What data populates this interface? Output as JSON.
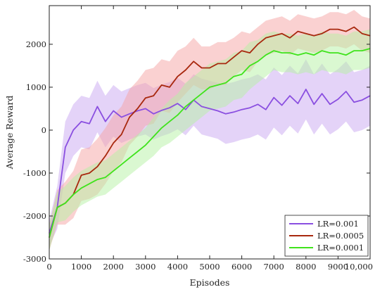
{
  "chart_data": {
    "type": "line",
    "xlabel": "Episodes",
    "ylabel": "Average Reward",
    "xlim": [
      0,
      10000
    ],
    "ylim": [
      -3000,
      2900
    ],
    "xticks": [
      0,
      1000,
      2000,
      3000,
      4000,
      5000,
      6000,
      7000,
      8000,
      9000,
      10000
    ],
    "xtick_labels": [
      "0",
      "1000",
      "2000",
      "3000",
      "4000",
      "5000",
      "6000",
      "7000",
      "8000",
      "9000",
      "10,000"
    ],
    "yticks": [
      -3000,
      -2000,
      -1000,
      0,
      1000,
      2000
    ],
    "ytick_labels": [
      "-3000",
      "-2000",
      "-1000",
      "0",
      "1000",
      "2000"
    ],
    "grid": false,
    "legend_position": "bottom-right",
    "x": [
      0,
      250,
      500,
      750,
      1000,
      1250,
      1500,
      1750,
      2000,
      2250,
      2500,
      2750,
      3000,
      3250,
      3500,
      3750,
      4000,
      4250,
      4500,
      4750,
      5000,
      5250,
      5500,
      5750,
      6000,
      6250,
      6500,
      6750,
      7000,
      7250,
      7500,
      7750,
      8000,
      8250,
      8500,
      8750,
      9000,
      9250,
      9500,
      9750,
      10000
    ],
    "series": [
      {
        "name": "LR=0.001",
        "color": "#8a4fe0",
        "band_color": "#c9a8f2",
        "values": [
          -2400,
          -1800,
          -400,
          0,
          200,
          150,
          550,
          200,
          450,
          300,
          380,
          450,
          500,
          380,
          460,
          520,
          620,
          480,
          700,
          550,
          500,
          450,
          380,
          420,
          480,
          520,
          600,
          480,
          760,
          580,
          800,
          620,
          950,
          600,
          850,
          600,
          720,
          900,
          650,
          700,
          800
        ],
        "band": [
          300,
          500,
          600,
          600,
          600,
          600,
          600,
          600,
          600,
          600,
          600,
          600,
          600,
          600,
          600,
          600,
          600,
          600,
          600,
          650,
          650,
          650,
          700,
          700,
          700,
          700,
          700,
          700,
          700,
          700,
          700,
          700,
          700,
          700,
          700,
          700,
          700,
          700,
          700,
          700,
          700
        ]
      },
      {
        "name": "LR=0.0005",
        "color": "#a8280e",
        "band_color": "#f6a3a3",
        "values": [
          -2500,
          -1800,
          -1700,
          -1500,
          -1050,
          -1000,
          -850,
          -600,
          -300,
          -100,
          300,
          500,
          750,
          800,
          1050,
          1000,
          1250,
          1400,
          1600,
          1450,
          1450,
          1550,
          1550,
          1700,
          1850,
          1800,
          2000,
          2150,
          2200,
          2250,
          2150,
          2300,
          2250,
          2200,
          2250,
          2350,
          2350,
          2300,
          2400,
          2250,
          2200
        ],
        "band": [
          300,
          400,
          500,
          550,
          600,
          600,
          650,
          650,
          650,
          650,
          650,
          650,
          650,
          650,
          600,
          600,
          600,
          550,
          550,
          500,
          500,
          500,
          500,
          450,
          450,
          450,
          400,
          400,
          400,
          400,
          400,
          400,
          400,
          400,
          400,
          400,
          400,
          400,
          400,
          400,
          400
        ]
      },
      {
        "name": "LR=0.0001",
        "color": "#3fe31c",
        "band_color": "#b6f2a4",
        "values": [
          -2500,
          -1800,
          -1700,
          -1500,
          -1350,
          -1250,
          -1150,
          -1100,
          -950,
          -800,
          -650,
          -500,
          -350,
          -150,
          50,
          200,
          350,
          550,
          700,
          850,
          1000,
          1050,
          1100,
          1250,
          1300,
          1500,
          1600,
          1750,
          1850,
          1800,
          1800,
          1750,
          1800,
          1750,
          1850,
          1800,
          1800,
          1750,
          1850,
          1850,
          1900
        ],
        "band": [
          300,
          350,
          400,
          400,
          400,
          400,
          400,
          400,
          400,
          400,
          400,
          400,
          400,
          450,
          450,
          500,
          500,
          550,
          550,
          550,
          550,
          550,
          550,
          550,
          550,
          550,
          500,
          500,
          450,
          450,
          450,
          450,
          450,
          450,
          450,
          450,
          450,
          450,
          450,
          450,
          450
        ]
      }
    ]
  }
}
